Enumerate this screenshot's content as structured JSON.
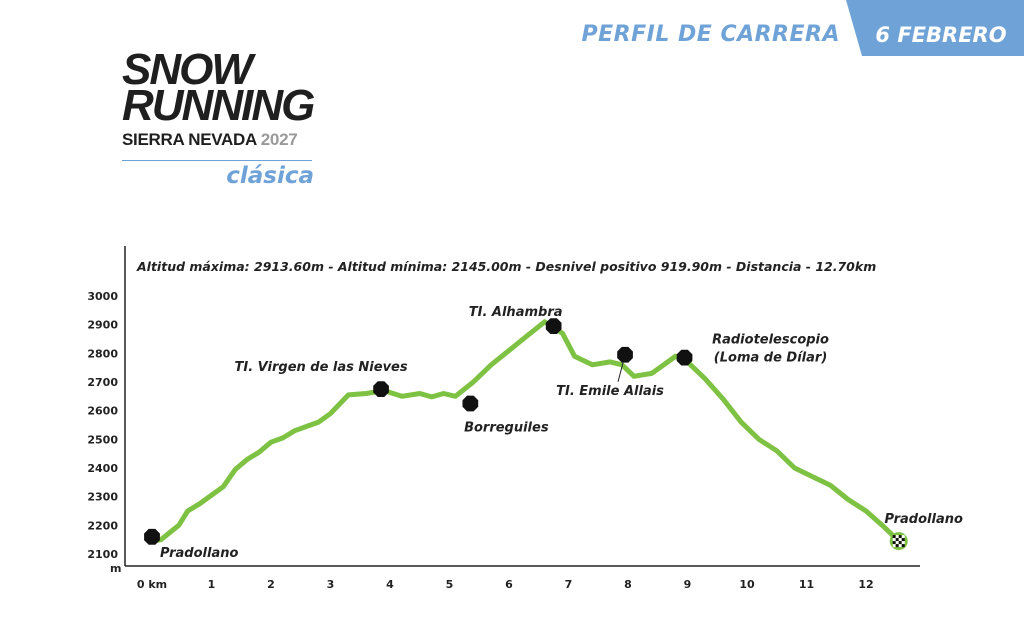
{
  "header": {
    "title": "PERFIL DE CARRERA",
    "date": "6 FEBRERO"
  },
  "logo": {
    "line1": "SNOW",
    "line2": "RUNNING",
    "line3": "SIERRA NEVADA",
    "year": "2027",
    "edition": "clásica"
  },
  "colors": {
    "accent": "#6fa3d8",
    "route": "#7dc242",
    "axis": "#222222",
    "marker": "#111111"
  },
  "chart_data": {
    "type": "line",
    "summary": "Altitud máxima: 2913.60m - Altitud mínima: 2145.00m - Desnivel positivo 919.90m - Distancia - 12.70km",
    "ylabel": "m",
    "ylim": [
      2085,
      3015
    ],
    "yticks": [
      3000,
      2900,
      2800,
      2700,
      2600,
      2500,
      2400,
      2300,
      2200,
      2100
    ],
    "xticks": [
      {
        "value": 0,
        "label": "0 km"
      },
      {
        "value": 1,
        "label": "1"
      },
      {
        "value": 2,
        "label": "2"
      },
      {
        "value": 3,
        "label": "3"
      },
      {
        "value": 4,
        "label": "4"
      },
      {
        "value": 5,
        "label": "5"
      },
      {
        "value": 6,
        "label": "6"
      },
      {
        "value": 7,
        "label": "7"
      },
      {
        "value": 8,
        "label": "8"
      },
      {
        "value": 9,
        "label": "9"
      },
      {
        "value": 10,
        "label": "10"
      },
      {
        "value": 11,
        "label": "11"
      },
      {
        "value": 12,
        "label": "12"
      }
    ],
    "xlim": [
      -0.25,
      12.9
    ],
    "series": [
      {
        "x": [
          0,
          0.15,
          0.3,
          0.45,
          0.6,
          0.8,
          1.0,
          1.2,
          1.4,
          1.6,
          1.8,
          2.0,
          2.2,
          2.4,
          2.6,
          2.8,
          3.0,
          3.3,
          3.6,
          3.9,
          4.2,
          4.5,
          4.7,
          4.9,
          5.1,
          5.4,
          5.7,
          6.0,
          6.3,
          6.6,
          6.75,
          6.9,
          7.1,
          7.4,
          7.7,
          7.9,
          8.1,
          8.4,
          8.6,
          8.8,
          9.0,
          9.3,
          9.6,
          9.9,
          10.2,
          10.5,
          10.8,
          11.1,
          11.4,
          11.7,
          12.0,
          12.3,
          12.55
        ],
        "y": [
          2145,
          2150,
          2175,
          2200,
          2250,
          2275,
          2305,
          2335,
          2395,
          2430,
          2455,
          2490,
          2505,
          2530,
          2545,
          2560,
          2590,
          2655,
          2660,
          2670,
          2650,
          2660,
          2648,
          2660,
          2650,
          2700,
          2760,
          2810,
          2860,
          2910,
          2890,
          2870,
          2790,
          2760,
          2770,
          2760,
          2720,
          2730,
          2760,
          2790,
          2770,
          2710,
          2640,
          2560,
          2500,
          2460,
          2400,
          2370,
          2340,
          2290,
          2250,
          2195,
          2145
        ]
      }
    ],
    "markers": [
      {
        "name": "Pradollano",
        "km": 0.0,
        "alt": 2160,
        "kind": "dot"
      },
      {
        "name": "TI. Virgen de las Nieves",
        "km": 3.85,
        "alt": 2675,
        "kind": "dot"
      },
      {
        "name": "Borreguiles",
        "km": 5.35,
        "alt": 2625,
        "kind": "dot"
      },
      {
        "name": "TI. Alhambra",
        "km": 6.75,
        "alt": 2895,
        "kind": "dot"
      },
      {
        "name": "TI. Emile Allais",
        "km": 7.95,
        "alt": 2795,
        "kind": "dot"
      },
      {
        "name": "Radiotelescopio",
        "name2": "(Loma de Dílar)",
        "km": 8.95,
        "alt": 2785,
        "kind": "dot"
      },
      {
        "name": "Pradollano",
        "km": 12.55,
        "alt": 2145,
        "kind": "finish"
      }
    ]
  }
}
